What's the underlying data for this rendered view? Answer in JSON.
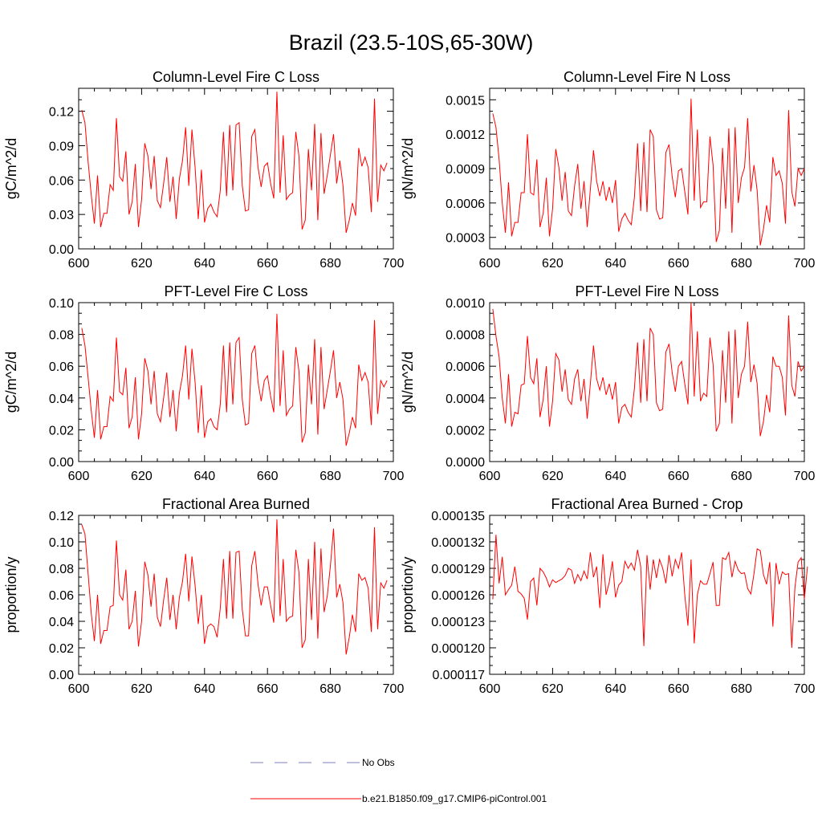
{
  "page": {
    "title": "Brazil (23.5-10S,65-30W)"
  },
  "legend": {
    "entries": [
      {
        "label": "No Obs",
        "color": "#7f7fbf",
        "style": "dashed"
      },
      {
        "label": "b.e21.B1850.f09_g17.CMIP6-piControl.001",
        "color": "#ff0000",
        "style": "solid"
      }
    ]
  },
  "chart_data": [
    {
      "type": "line",
      "title": "Column-Level Fire C Loss",
      "ylabel": "gC/m^2/d",
      "xlabel": "",
      "xlim": [
        600,
        700
      ],
      "ylim": [
        0,
        0.14
      ],
      "xticks": [
        "600",
        "620",
        "640",
        "660",
        "680",
        "700"
      ],
      "yticks": [
        "0.00",
        "0.03",
        "0.06",
        "0.09",
        "0.12"
      ],
      "ytick_values": [
        0,
        0.03,
        0.06,
        0.09,
        0.12
      ],
      "series": [
        {
          "name": "b.e21.B1850.f09_g17.CMIP6-piControl.001",
          "color": "#ff0000",
          "x_start": 601,
          "values": [
            0.121,
            0.11,
            0.076,
            0.047,
            0.022,
            0.064,
            0.019,
            0.031,
            0.031,
            0.056,
            0.051,
            0.114,
            0.063,
            0.059,
            0.085,
            0.03,
            0.041,
            0.074,
            0.019,
            0.043,
            0.092,
            0.081,
            0.052,
            0.081,
            0.042,
            0.036,
            0.057,
            0.08,
            0.041,
            0.063,
            0.026,
            0.061,
            0.077,
            0.106,
            0.055,
            0.104,
            0.071,
            0.026,
            0.069,
            0.023,
            0.035,
            0.039,
            0.032,
            0.028,
            0.051,
            0.102,
            0.046,
            0.108,
            0.051,
            0.108,
            0.11,
            0.055,
            0.033,
            0.034,
            0.098,
            0.104,
            0.071,
            0.054,
            0.072,
            0.075,
            0.057,
            0.044,
            0.137,
            0.049,
            0.099,
            0.043,
            0.047,
            0.049,
            0.102,
            0.081,
            0.017,
            0.025,
            0.087,
            0.051,
            0.109,
            0.025,
            0.101,
            0.048,
            0.064,
            0.082,
            0.1,
            0.057,
            0.077,
            0.055,
            0.014,
            0.025,
            0.04,
            0.029,
            0.088,
            0.072,
            0.08,
            0.071,
            0.032,
            0.131,
            0.041,
            0.073,
            0.068,
            0.075
          ]
        }
      ]
    },
    {
      "type": "line",
      "title": "Column-Level Fire N Loss",
      "ylabel": "gN/m^2/d",
      "xlabel": "",
      "xlim": [
        600,
        700
      ],
      "ylim": [
        0.0002,
        0.0016
      ],
      "xticks": [
        "600",
        "620",
        "640",
        "660",
        "680",
        "700"
      ],
      "yticks": [
        "0.0003",
        "0.0006",
        "0.0009",
        "0.0012",
        "0.0015"
      ],
      "ytick_values": [
        0.0003,
        0.0006,
        0.0009,
        0.0012,
        0.0015
      ],
      "series": [
        {
          "name": "b.e21.B1850.f09_g17.CMIP6-piControl.001",
          "color": "#ff0000",
          "x_start": 601,
          "values": [
            0.00138,
            0.00126,
            0.00098,
            0.0006,
            0.00034,
            0.00078,
            0.00031,
            0.00043,
            0.00043,
            0.00069,
            0.00069,
            0.0012,
            0.00069,
            0.00067,
            0.00098,
            0.00039,
            0.00051,
            0.00082,
            0.00031,
            0.00055,
            0.00107,
            0.00091,
            0.00062,
            0.00087,
            0.00053,
            0.00049,
            0.00075,
            0.00094,
            0.00055,
            0.00079,
            0.00039,
            0.00072,
            0.00106,
            0.00079,
            0.00066,
            0.00079,
            0.00062,
            0.00074,
            0.0006,
            0.0008,
            0.00035,
            0.00046,
            0.00051,
            0.00045,
            0.00041,
            0.00065,
            0.00112,
            0.00053,
            0.00113,
            0.00052,
            0.00124,
            0.00118,
            0.00054,
            0.00046,
            0.00047,
            0.00104,
            0.00111,
            0.00083,
            0.00065,
            0.00088,
            0.0009,
            0.0007,
            0.0005,
            0.00151,
            0.00062,
            0.00124,
            0.00056,
            0.00061,
            0.00061,
            0.00118,
            0.00093,
            0.00026,
            0.00036,
            0.00108,
            0.00055,
            0.00125,
            0.00034,
            0.00126,
            0.0006,
            0.00082,
            0.00091,
            0.00134,
            0.0007,
            0.00093,
            0.00071,
            0.00023,
            0.00037,
            0.00058,
            0.00043,
            0.001,
            0.00084,
            0.00088,
            0.00077,
            0.00042,
            0.00141,
            0.0007,
            0.00057,
            0.0009,
            0.00084,
            0.0009
          ]
        }
      ]
    },
    {
      "type": "line",
      "title": "PFT-Level Fire C Loss",
      "ylabel": "gC/m^2/d",
      "xlabel": "",
      "xlim": [
        600,
        700
      ],
      "ylim": [
        0,
        0.1
      ],
      "xticks": [
        "600",
        "620",
        "640",
        "660",
        "680",
        "700"
      ],
      "yticks": [
        "0.00",
        "0.02",
        "0.04",
        "0.06",
        "0.08",
        "0.10"
      ],
      "ytick_values": [
        0,
        0.02,
        0.04,
        0.06,
        0.08,
        0.1
      ],
      "series": [
        {
          "name": "b.e21.B1850.f09_g17.CMIP6-piControl.001",
          "color": "#ff0000",
          "x_start": 601,
          "values": [
            0.084,
            0.073,
            0.053,
            0.032,
            0.015,
            0.045,
            0.014,
            0.022,
            0.022,
            0.041,
            0.038,
            0.078,
            0.044,
            0.042,
            0.059,
            0.021,
            0.028,
            0.053,
            0.014,
            0.03,
            0.065,
            0.057,
            0.036,
            0.057,
            0.03,
            0.025,
            0.04,
            0.056,
            0.028,
            0.045,
            0.019,
            0.043,
            0.054,
            0.073,
            0.039,
            0.071,
            0.05,
            0.018,
            0.048,
            0.015,
            0.025,
            0.027,
            0.022,
            0.02,
            0.036,
            0.073,
            0.031,
            0.075,
            0.036,
            0.075,
            0.078,
            0.039,
            0.023,
            0.024,
            0.068,
            0.073,
            0.05,
            0.038,
            0.051,
            0.054,
            0.041,
            0.031,
            0.093,
            0.035,
            0.07,
            0.029,
            0.033,
            0.035,
            0.072,
            0.057,
            0.012,
            0.018,
            0.061,
            0.036,
            0.077,
            0.017,
            0.072,
            0.033,
            0.045,
            0.057,
            0.07,
            0.04,
            0.05,
            0.039,
            0.01,
            0.018,
            0.028,
            0.021,
            0.061,
            0.051,
            0.056,
            0.05,
            0.023,
            0.089,
            0.03,
            0.051,
            0.047,
            0.051
          ]
        }
      ]
    },
    {
      "type": "line",
      "title": "PFT-Level Fire N Loss",
      "ylabel": "gN/m^2/d",
      "xlabel": "",
      "xlim": [
        600,
        700
      ],
      "ylim": [
        0,
        0.001
      ],
      "xticks": [
        "600",
        "620",
        "640",
        "660",
        "680",
        "700"
      ],
      "yticks": [
        "0.0000",
        "0.0002",
        "0.0004",
        "0.0006",
        "0.0008",
        "0.0010"
      ],
      "ytick_values": [
        0,
        0.0002,
        0.0004,
        0.0006,
        0.0008,
        0.001
      ],
      "series": [
        {
          "name": "b.e21.B1850.f09_g17.CMIP6-piControl.001",
          "color": "#ff0000",
          "x_start": 601,
          "values": [
            0.00096,
            0.00079,
            0.00066,
            0.0004,
            0.00024,
            0.00055,
            0.00022,
            0.00031,
            0.0003,
            0.00048,
            0.00049,
            0.00079,
            0.00053,
            0.00049,
            0.00065,
            0.00028,
            0.00039,
            0.0006,
            0.00022,
            0.00038,
            0.00068,
            0.00064,
            0.00044,
            0.00058,
            0.00039,
            0.00036,
            0.00052,
            0.00058,
            0.00038,
            0.00052,
            0.00027,
            0.00049,
            0.00073,
            0.00052,
            0.00045,
            0.00053,
            0.00042,
            0.00049,
            0.00039,
            0.0005,
            0.00024,
            0.00034,
            0.00036,
            0.00031,
            0.00028,
            0.00046,
            0.00075,
            0.00037,
            0.00077,
            0.00038,
            0.00084,
            0.0008,
            0.00037,
            0.00032,
            0.00033,
            0.00069,
            0.00074,
            0.00056,
            0.00044,
            0.0006,
            0.00063,
            0.00049,
            0.00036,
            0.001,
            0.00041,
            0.00082,
            0.00038,
            0.00043,
            0.00041,
            0.00078,
            0.00061,
            0.00019,
            0.00024,
            0.0007,
            0.00037,
            0.00082,
            0.00024,
            0.00083,
            0.0004,
            0.00055,
            0.0006,
            0.00088,
            0.0005,
            0.00061,
            0.00049,
            0.00016,
            0.00025,
            0.00042,
            0.00031,
            0.00066,
            0.0006,
            0.0006,
            0.00053,
            0.00029,
            0.00092,
            0.00048,
            0.00041,
            0.00063,
            0.00057,
            0.0006
          ]
        }
      ]
    },
    {
      "type": "line",
      "title": "Fractional Area Burned",
      "ylabel": "proportion/y",
      "xlabel": "",
      "xlim": [
        600,
        700
      ],
      "ylim": [
        0,
        0.12
      ],
      "xticks": [
        "600",
        "620",
        "640",
        "660",
        "680",
        "700"
      ],
      "yticks": [
        "0.00",
        "0.02",
        "0.04",
        "0.06",
        "0.08",
        "0.10",
        "0.12"
      ],
      "ytick_values": [
        0,
        0.02,
        0.04,
        0.06,
        0.08,
        0.1,
        0.12
      ],
      "series": [
        {
          "name": "b.e21.B1850.f09_g17.CMIP6-piControl.001",
          "color": "#ff0000",
          "x_start": 601,
          "values": [
            0.113,
            0.106,
            0.076,
            0.046,
            0.025,
            0.06,
            0.023,
            0.033,
            0.033,
            0.051,
            0.052,
            0.101,
            0.06,
            0.056,
            0.079,
            0.034,
            0.04,
            0.063,
            0.021,
            0.04,
            0.085,
            0.075,
            0.051,
            0.076,
            0.043,
            0.036,
            0.056,
            0.073,
            0.041,
            0.06,
            0.034,
            0.058,
            0.07,
            0.091,
            0.055,
            0.089,
            0.067,
            0.038,
            0.06,
            0.023,
            0.036,
            0.038,
            0.036,
            0.028,
            0.05,
            0.087,
            0.042,
            0.093,
            0.042,
            0.092,
            0.093,
            0.049,
            0.029,
            0.029,
            0.082,
            0.093,
            0.068,
            0.052,
            0.066,
            0.066,
            0.052,
            0.039,
            0.117,
            0.044,
            0.087,
            0.04,
            0.043,
            0.044,
            0.094,
            0.077,
            0.02,
            0.026,
            0.087,
            0.041,
            0.1,
            0.027,
            0.095,
            0.047,
            0.059,
            0.082,
            0.11,
            0.058,
            0.068,
            0.054,
            0.015,
            0.028,
            0.045,
            0.032,
            0.076,
            0.071,
            0.073,
            0.065,
            0.032,
            0.111,
            0.034,
            0.069,
            0.065,
            0.071
          ]
        }
      ]
    },
    {
      "type": "line",
      "title": "Fractional Area Burned - Crop",
      "ylabel": "proportion/y",
      "xlabel": "",
      "xlim": [
        600,
        700
      ],
      "ylim": [
        0.000117,
        0.000135
      ],
      "xticks": [
        "600",
        "620",
        "640",
        "660",
        "680",
        "700"
      ],
      "yticks": [
        "0.000117",
        "0.000120",
        "0.000123",
        "0.000126",
        "0.000129",
        "0.000132",
        "0.000135"
      ],
      "ytick_values": [
        0.000117,
        0.00012,
        0.000123,
        0.000126,
        0.000129,
        0.000132,
        0.000135
      ],
      "series": [
        {
          "name": "b.e21.B1850.f09_g17.CMIP6-piControl.001",
          "color": "#ff0000",
          "x_start": 601,
          "values": [
            0.0001255,
            0.0001328,
            0.0001273,
            0.0001303,
            0.000126,
            0.0001266,
            0.0001271,
            0.0001292,
            0.0001264,
            0.0001261,
            0.0001256,
            0.0001232,
            0.0001275,
            0.0001279,
            0.0001248,
            0.000129,
            0.0001286,
            0.0001279,
            0.0001269,
            0.0001277,
            0.0001274,
            0.0001276,
            0.0001278,
            0.0001282,
            0.000129,
            0.0001288,
            0.0001273,
            0.0001283,
            0.0001276,
            0.0001287,
            0.0001278,
            0.0001308,
            0.000128,
            0.0001292,
            0.0001245,
            0.0001306,
            0.000126,
            0.0001274,
            0.0001298,
            0.0001257,
            0.0001271,
            0.0001275,
            0.0001298,
            0.000129,
            0.0001296,
            0.0001288,
            0.0001311,
            0.0001292,
            0.0001202,
            0.0001305,
            0.0001266,
            0.00013,
            0.0001279,
            0.00013,
            0.000129,
            0.0001273,
            0.0001305,
            0.0001281,
            0.00013,
            0.000129,
            0.0001308,
            0.000126,
            0.0001225,
            0.00013,
            0.0001205,
            0.000126,
            0.0001276,
            0.0001272,
            0.0001272,
            0.0001284,
            0.0001297,
            0.0001248,
            0.0001248,
            0.0001302,
            0.00013,
            0.0001308,
            0.000128,
            0.0001298,
            0.0001288,
            0.0001284,
            0.0001285,
            0.0001267,
            0.0001261,
            0.0001284,
            0.0001312,
            0.000131,
            0.0001283,
            0.0001272,
            0.0001297,
            0.0001224,
            0.0001296,
            0.0001272,
            0.0001286,
            0.0001283,
            0.0001284,
            0.00012,
            0.0001268,
            0.0001297,
            0.0001302,
            0.0001255,
            0.0001292
          ]
        }
      ]
    }
  ]
}
